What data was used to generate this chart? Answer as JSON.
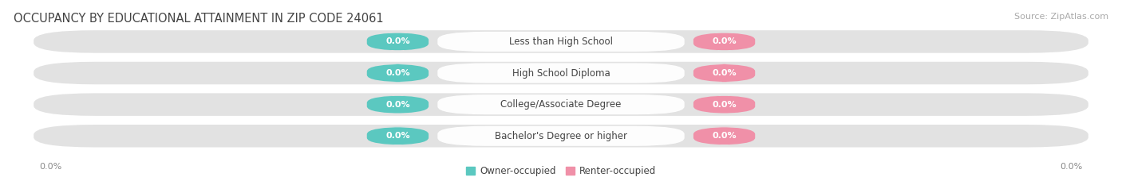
{
  "title": "OCCUPANCY BY EDUCATIONAL ATTAINMENT IN ZIP CODE 24061",
  "source_text": "Source: ZipAtlas.com",
  "categories": [
    "Less than High School",
    "High School Diploma",
    "College/Associate Degree",
    "Bachelor's Degree or higher"
  ],
  "owner_values": [
    0.0,
    0.0,
    0.0,
    0.0
  ],
  "renter_values": [
    0.0,
    0.0,
    0.0,
    0.0
  ],
  "owner_color": "#5bc8c0",
  "renter_color": "#f090a8",
  "owner_label": "Owner-occupied",
  "renter_label": "Renter-occupied",
  "bar_bg_color": "#e2e2e2",
  "label_value_color": "#ffffff",
  "cat_label_color": "#444444",
  "axis_label_color": "#888888",
  "title_color": "#444444",
  "source_color": "#aaaaaa",
  "bg_color": "#ffffff",
  "title_fontsize": 10.5,
  "source_fontsize": 8,
  "val_fontsize": 8,
  "cat_fontsize": 8.5,
  "legend_fontsize": 8.5,
  "axis_fontsize": 8,
  "fig_width": 14.06,
  "fig_height": 2.33,
  "dpi": 100
}
